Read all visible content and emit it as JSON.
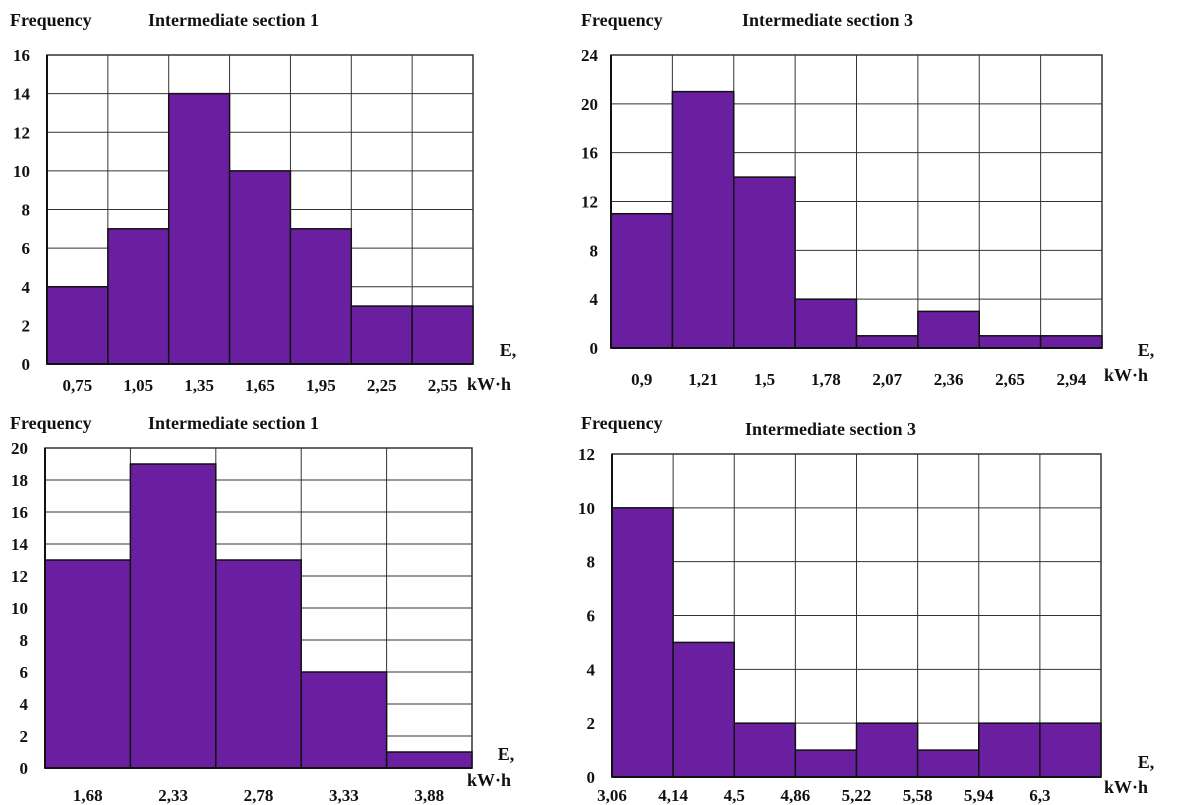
{
  "colors": {
    "bar": "#6a1fa0",
    "bar_edge": "#111111",
    "grid": "#333333",
    "text": "#111111"
  },
  "chart_data": [
    {
      "type": "bar",
      "title": "Intermediate section 1",
      "ylabel": "Frequency",
      "xlabel": [
        "E,",
        "kW·h"
      ],
      "ylim": [
        0,
        16
      ],
      "yticks": [
        "0",
        "2",
        "4",
        "6",
        "8",
        "10",
        "12",
        "14",
        "16"
      ],
      "x_ticks": [
        "0,75",
        "1,05",
        "1,35",
        "1,65",
        "1,95",
        "2,25",
        "2,55"
      ],
      "values": [
        4,
        7,
        14,
        10,
        7,
        3,
        3
      ],
      "grid": true
    },
    {
      "type": "bar",
      "title": "Intermediate section 3",
      "ylabel": "Frequency",
      "xlabel": [
        "E,",
        "kW·h"
      ],
      "ylim": [
        0,
        24
      ],
      "yticks": [
        "0",
        "4",
        "8",
        "12",
        "16",
        "20",
        "24"
      ],
      "x_ticks": [
        "0,9",
        "1,21",
        "1,5",
        "1,78",
        "2,07",
        "2,36",
        "2,65",
        "2,94"
      ],
      "values": [
        11,
        21,
        14,
        4,
        1,
        3,
        1,
        1
      ],
      "grid": true
    },
    {
      "type": "bar",
      "title": "Intermediate section 1",
      "ylabel": "Frequency",
      "xlabel": [
        "E,",
        "kW·h"
      ],
      "ylim": [
        0,
        20
      ],
      "yticks": [
        "0",
        "2",
        "4",
        "6",
        "8",
        "10",
        "12",
        "14",
        "16",
        "18",
        "20"
      ],
      "x_ticks": [
        "1,68",
        "2,33",
        "2,78",
        "3,33",
        "3,88"
      ],
      "values": [
        13,
        19,
        13,
        6,
        1
      ],
      "grid": true
    },
    {
      "type": "bar",
      "title": "Intermediate section 3",
      "ylabel": "Frequency",
      "xlabel": [
        "E,",
        "kW·h"
      ],
      "ylim": [
        0,
        12
      ],
      "yticks": [
        "0",
        "2",
        "4",
        "6",
        "8",
        "10",
        "12"
      ],
      "x_ticks": [
        "3,06",
        "4,14",
        "4,5",
        "4,86",
        "5,22",
        "5,58",
        "5,94",
        "6,3"
      ],
      "values": [
        10,
        5,
        2,
        1,
        2,
        1,
        2,
        2
      ],
      "grid": true
    }
  ]
}
